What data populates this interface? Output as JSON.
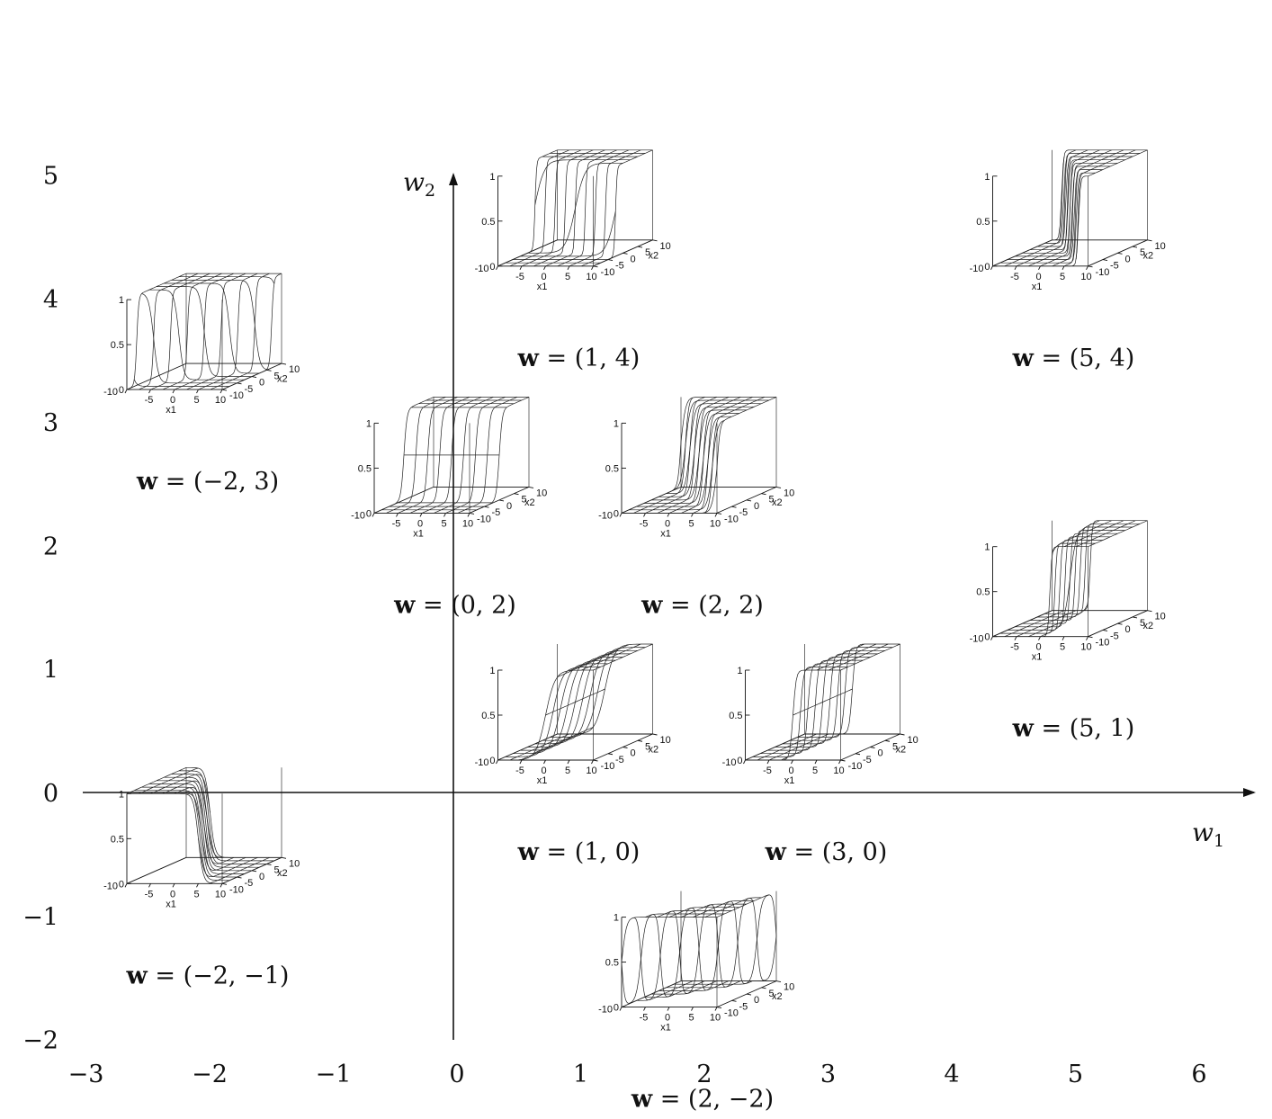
{
  "axes": {
    "x_label": "w",
    "x_label_sub": "1",
    "y_label": "w",
    "y_label_sub": "2",
    "x_range": [
      -3,
      6
    ],
    "y_range": [
      -2,
      5
    ],
    "x_ticks": [
      "−3",
      "−2",
      "−1",
      "0",
      "1",
      "2",
      "3",
      "4",
      "5",
      "6"
    ],
    "y_ticks": [
      "5",
      "4",
      "3",
      "2",
      "1",
      "0",
      "−1",
      "−2"
    ]
  },
  "panel_labels": {
    "z_ticks": [
      "1",
      "0.5",
      "0"
    ],
    "x1_ticks": [
      "-10",
      "-5",
      "0",
      "5",
      "10"
    ],
    "x2_ticks": [
      "-10",
      "-5",
      "0",
      "5",
      "10"
    ],
    "x1_name": "x1",
    "x2_name": "x2"
  },
  "panels": [
    {
      "w1": 1,
      "w2": 4,
      "caption": "(1, 4)"
    },
    {
      "w1": 5,
      "w2": 4,
      "caption": "(5, 4)"
    },
    {
      "w1": -2,
      "w2": 3,
      "caption": "(−2, 3)"
    },
    {
      "w1": 0,
      "w2": 2,
      "caption": "(0, 2)"
    },
    {
      "w1": 2,
      "w2": 2,
      "caption": "(2, 2)"
    },
    {
      "w1": 5,
      "w2": 1,
      "caption": "(5, 1)"
    },
    {
      "w1": 1,
      "w2": 0,
      "caption": "(1, 0)"
    },
    {
      "w1": 3,
      "w2": 0,
      "caption": "(3, 0)"
    },
    {
      "w1": -2,
      "w2": -1,
      "caption": "(−2, −1)"
    },
    {
      "w1": 2,
      "w2": -2,
      "caption": "(2, −2)"
    }
  ],
  "caption_prefix": "w",
  "caption_eq": " = "
}
